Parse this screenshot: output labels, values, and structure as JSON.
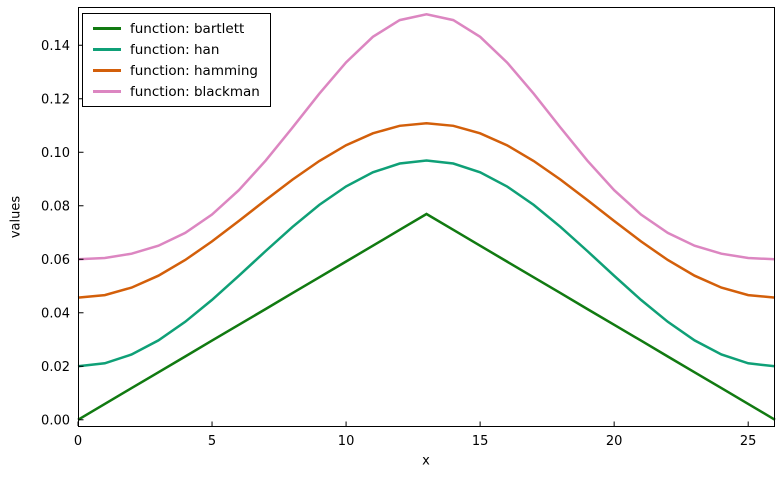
{
  "chart_data": {
    "type": "line",
    "title": "",
    "xlabel": "x",
    "ylabel": "values",
    "grid": false,
    "legend_position": "upper-left",
    "line_width": 2.5,
    "frame_color": "#000000",
    "background_color": "#ffffff",
    "xlim": [
      0,
      26
    ],
    "ylim": [
      -0.0027,
      0.1543
    ],
    "xticks": [
      "0",
      "5",
      "10",
      "15",
      "20",
      "25"
    ],
    "yticks": [
      "0.00",
      "0.02",
      "0.04",
      "0.06",
      "0.08",
      "0.10",
      "0.12",
      "0.14"
    ],
    "x": [
      0,
      1,
      2,
      3,
      4,
      5,
      6,
      7,
      8,
      9,
      10,
      11,
      12,
      13,
      14,
      15,
      16,
      17,
      18,
      19,
      20,
      21,
      22,
      23,
      24,
      25,
      26
    ],
    "series": [
      {
        "name": "function: bartlett",
        "key": "bartlett",
        "color": "#117a11",
        "values": [
          0.0,
          0.005917,
          0.011834,
          0.017751,
          0.023669,
          0.029586,
          0.035503,
          0.04142,
          0.047337,
          0.053254,
          0.059172,
          0.065089,
          0.071006,
          0.076923,
          0.071006,
          0.065089,
          0.059172,
          0.053254,
          0.047337,
          0.04142,
          0.035503,
          0.029586,
          0.023669,
          0.017751,
          0.011834,
          0.005917,
          0.0
        ]
      },
      {
        "name": "function: han",
        "key": "han",
        "color": "#0fa077",
        "values": [
          0.02,
          0.021118,
          0.024406,
          0.029673,
          0.036613,
          0.044823,
          0.053826,
          0.063098,
          0.0721,
          0.08031,
          0.08725,
          0.092518,
          0.095806,
          0.096923,
          0.095806,
          0.092518,
          0.08725,
          0.08031,
          0.0721,
          0.063098,
          0.053826,
          0.044823,
          0.036613,
          0.029673,
          0.024406,
          0.021118,
          0.02
        ]
      },
      {
        "name": "function: hamming",
        "key": "hamming",
        "color": "#d35f0a",
        "values": [
          0.045666,
          0.046612,
          0.049397,
          0.053859,
          0.059737,
          0.066691,
          0.074317,
          0.08217,
          0.089796,
          0.09675,
          0.102629,
          0.10709,
          0.109875,
          0.110822,
          0.109875,
          0.10709,
          0.102629,
          0.09675,
          0.089796,
          0.08217,
          0.074317,
          0.066691,
          0.059737,
          0.053859,
          0.049397,
          0.046612,
          0.045666
        ]
      },
      {
        "name": "function: blackman",
        "key": "blackman",
        "color": "#dc86c1",
        "values": [
          0.06,
          0.060491,
          0.06208,
          0.065072,
          0.069853,
          0.076741,
          0.085829,
          0.096868,
          0.109215,
          0.121874,
          0.133617,
          0.143166,
          0.149405,
          0.151575,
          0.149405,
          0.143166,
          0.133617,
          0.121874,
          0.109215,
          0.096868,
          0.085829,
          0.076741,
          0.069853,
          0.065072,
          0.06208,
          0.060491,
          0.06
        ]
      }
    ]
  }
}
